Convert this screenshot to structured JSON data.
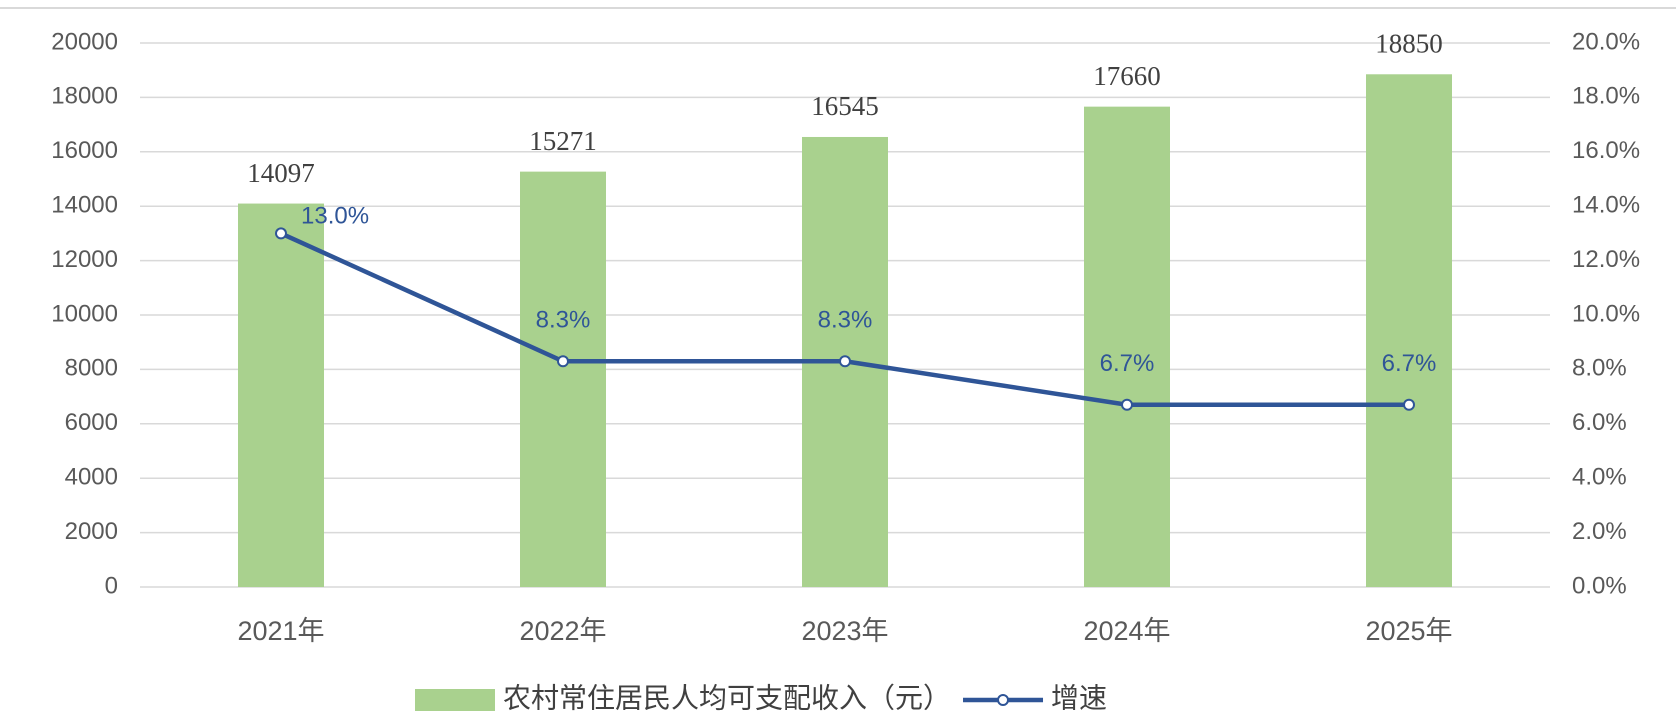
{
  "chart_data": {
    "type": "bar",
    "categories": [
      "2021年",
      "2022年",
      "2023年",
      "2024年",
      "2025年"
    ],
    "series": [
      {
        "name": "农村常住居民人均可支配收入（元）",
        "color": "#a9d18e",
        "values": [
          14097,
          15271,
          16545,
          17660,
          18850
        ]
      },
      {
        "name": "增速",
        "type": "line",
        "axis": "y2",
        "color": "#2f5597",
        "values": [
          13.0,
          8.3,
          8.3,
          6.7,
          6.7
        ],
        "value_labels": [
          "13.0%",
          "8.3%",
          "8.3%",
          "6.7%",
          "6.7%"
        ]
      }
    ],
    "ylim": [
      0,
      20000
    ],
    "yticks": [
      0,
      2000,
      4000,
      6000,
      8000,
      10000,
      12000,
      14000,
      16000,
      18000,
      20000
    ],
    "y2lim": [
      0,
      20
    ],
    "y2ticks": [
      {
        "value": 0,
        "label": "0.0%"
      },
      {
        "value": 2,
        "label": "2.0%"
      },
      {
        "value": 4,
        "label": "4.0%"
      },
      {
        "value": 6,
        "label": "6.0%"
      },
      {
        "value": 8,
        "label": "8.0%"
      },
      {
        "value": 10,
        "label": "10.0%"
      },
      {
        "value": 12,
        "label": "12.0%"
      },
      {
        "value": 14,
        "label": "14.0%"
      },
      {
        "value": 16,
        "label": "16.0%"
      },
      {
        "value": 18,
        "label": "18.0%"
      },
      {
        "value": 20,
        "label": "20.0%"
      }
    ],
    "grid": true,
    "legend": "bottom"
  }
}
